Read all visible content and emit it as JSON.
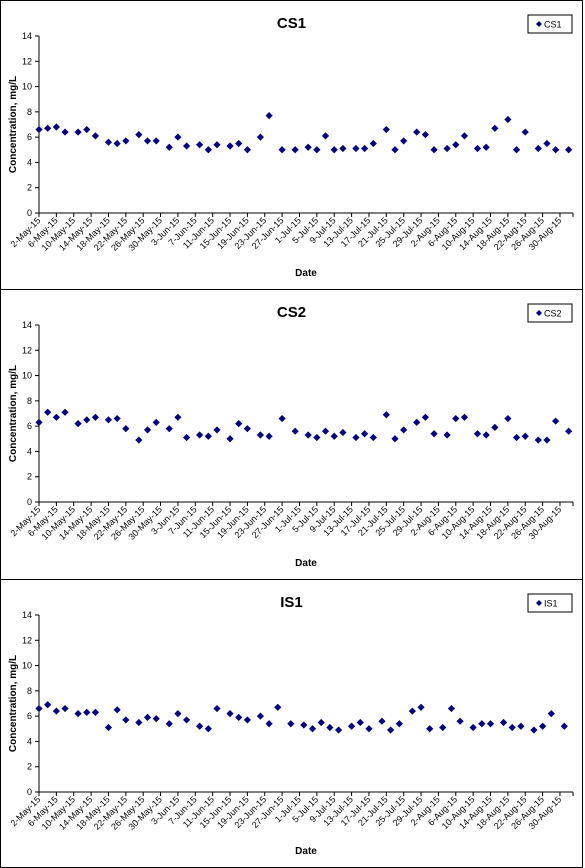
{
  "chart_data": [
    {
      "type": "scatter",
      "title": "CS1",
      "xlabel": "Date",
      "ylabel": "Concentration, mg/L",
      "ylim": [
        0,
        14
      ],
      "yticks": [
        "0",
        "2",
        "4",
        "6",
        "8",
        "10",
        "12",
        "14"
      ],
      "xlim": [
        "2-May-15",
        "2-Sep-15"
      ],
      "xtick_labels": [
        "2-May-15",
        "6-May-15",
        "10-May-15",
        "14-May-15",
        "18-May-15",
        "22-May-15",
        "26-May-15",
        "30-May-15",
        "3-Jun-15",
        "7-Jun-15",
        "11-Jun-15",
        "15-Jun-15",
        "19-Jun-15",
        "23-Jun-15",
        "27-Jun-15",
        "1-Jul-15",
        "5-Jul-15",
        "9-Jul-15",
        "13-Jul-15",
        "17-Jul-15",
        "21-Jul-15",
        "25-Jul-15",
        "29-Jul-15",
        "2-Aug-15",
        "6-Aug-15",
        "10-Aug-15",
        "14-Aug-15",
        "18-Aug-15",
        "22-Aug-15",
        "26-Aug-15",
        "30-Aug-15"
      ],
      "grid": false,
      "legend": "top-right",
      "color": "#000080",
      "series": [
        {
          "name": "CS1",
          "x": [
            "2-May-15",
            "4-May-15",
            "6-May-15",
            "8-May-15",
            "11-May-15",
            "13-May-15",
            "15-May-15",
            "18-May-15",
            "20-May-15",
            "22-May-15",
            "25-May-15",
            "27-May-15",
            "29-May-15",
            "1-Jun-15",
            "3-Jun-15",
            "5-Jun-15",
            "8-Jun-15",
            "10-Jun-15",
            "12-Jun-15",
            "15-Jun-15",
            "17-Jun-15",
            "19-Jun-15",
            "22-Jun-15",
            "24-Jun-15",
            "27-Jun-15",
            "30-Jun-15",
            "3-Jul-15",
            "5-Jul-15",
            "7-Jul-15",
            "9-Jul-15",
            "11-Jul-15",
            "14-Jul-15",
            "16-Jul-15",
            "18-Jul-15",
            "21-Jul-15",
            "23-Jul-15",
            "25-Jul-15",
            "28-Jul-15",
            "30-Jul-15",
            "1-Aug-15",
            "4-Aug-15",
            "6-Aug-15",
            "8-Aug-15",
            "11-Aug-15",
            "13-Aug-15",
            "15-Aug-15",
            "18-Aug-15",
            "20-Aug-15",
            "22-Aug-15",
            "25-Aug-15",
            "27-Aug-15",
            "29-Aug-15",
            "1-Sep-15"
          ],
          "y": [
            6.6,
            6.7,
            6.8,
            6.4,
            6.4,
            6.6,
            6.1,
            5.6,
            5.5,
            5.7,
            6.2,
            5.7,
            5.7,
            5.2,
            6.0,
            5.3,
            5.4,
            5.0,
            5.4,
            5.3,
            5.5,
            5.0,
            6.0,
            7.7,
            5.0,
            5.0,
            5.2,
            5.0,
            6.1,
            5.0,
            5.1,
            5.1,
            5.1,
            5.5,
            6.6,
            5.0,
            5.7,
            6.4,
            6.2,
            5.0,
            5.1,
            5.4,
            6.1,
            5.1,
            5.2,
            6.7,
            7.4,
            5.0,
            6.4,
            5.1,
            5.5,
            5.0,
            5.0
          ]
        }
      ]
    },
    {
      "type": "scatter",
      "title": "CS2",
      "xlabel": "Date",
      "ylabel": "Concentration, mg/L",
      "ylim": [
        0,
        14
      ],
      "yticks": [
        "0",
        "2",
        "4",
        "6",
        "8",
        "10",
        "12",
        "14"
      ],
      "xlim": [
        "2-May-15",
        "2-Sep-15"
      ],
      "xtick_labels": [
        "2-May-15",
        "6-May-15",
        "10-May-15",
        "14-May-15",
        "18-May-15",
        "22-May-15",
        "26-May-15",
        "30-May-15",
        "3-Jun-15",
        "7-Jun-15",
        "11-Jun-15",
        "15-Jun-15",
        "19-Jun-15",
        "23-Jun-15",
        "27-Jun-15",
        "1-Jul-15",
        "5-Jul-15",
        "9-Jul-15",
        "13-Jul-15",
        "17-Jul-15",
        "21-Jul-15",
        "25-Jul-15",
        "29-Jul-15",
        "2-Aug-15",
        "6-Aug-15",
        "10-Aug-15",
        "14-Aug-15",
        "18-Aug-15",
        "22-Aug-15",
        "26-Aug-15",
        "30-Aug-15"
      ],
      "grid": false,
      "legend": "top-right",
      "color": "#000080",
      "series": [
        {
          "name": "CS2",
          "x": [
            "2-May-15",
            "4-May-15",
            "6-May-15",
            "8-May-15",
            "11-May-15",
            "13-May-15",
            "15-May-15",
            "18-May-15",
            "20-May-15",
            "22-May-15",
            "25-May-15",
            "27-May-15",
            "29-May-15",
            "1-Jun-15",
            "3-Jun-15",
            "5-Jun-15",
            "8-Jun-15",
            "10-Jun-15",
            "12-Jun-15",
            "15-Jun-15",
            "17-Jun-15",
            "19-Jun-15",
            "22-Jun-15",
            "24-Jun-15",
            "27-Jun-15",
            "30-Jun-15",
            "3-Jul-15",
            "5-Jul-15",
            "7-Jul-15",
            "9-Jul-15",
            "11-Jul-15",
            "14-Jul-15",
            "16-Jul-15",
            "18-Jul-15",
            "21-Jul-15",
            "23-Jul-15",
            "25-Jul-15",
            "28-Jul-15",
            "30-Jul-15",
            "1-Aug-15",
            "4-Aug-15",
            "6-Aug-15",
            "8-Aug-15",
            "11-Aug-15",
            "13-Aug-15",
            "15-Aug-15",
            "18-Aug-15",
            "20-Aug-15",
            "22-Aug-15",
            "25-Aug-15",
            "27-Aug-15",
            "29-Aug-15",
            "1-Sep-15"
          ],
          "y": [
            6.3,
            7.1,
            6.7,
            7.1,
            6.2,
            6.5,
            6.7,
            6.5,
            6.6,
            5.8,
            4.9,
            5.7,
            6.3,
            5.8,
            6.7,
            5.1,
            5.3,
            5.2,
            5.7,
            5.0,
            6.2,
            5.8,
            5.3,
            5.2,
            6.6,
            5.6,
            5.3,
            5.1,
            5.6,
            5.2,
            5.5,
            5.1,
            5.4,
            5.1,
            6.9,
            5.0,
            5.7,
            6.3,
            6.7,
            5.4,
            5.3,
            6.6,
            6.7,
            5.4,
            5.3,
            5.9,
            6.6,
            5.1,
            5.2,
            4.9,
            4.9,
            6.4,
            5.6
          ]
        }
      ]
    },
    {
      "type": "scatter",
      "title": "IS1",
      "xlabel": "Date",
      "ylabel": "Concentration, mg/L",
      "ylim": [
        0,
        14
      ],
      "yticks": [
        "0",
        "2",
        "4",
        "6",
        "8",
        "10",
        "12",
        "14"
      ],
      "xlim": [
        "2-May-15",
        "2-Sep-15"
      ],
      "xtick_labels": [
        "2-May-15",
        "6-May-15",
        "10-May-15",
        "14-May-15",
        "18-May-15",
        "22-May-15",
        "26-May-15",
        "30-May-15",
        "3-Jun-15",
        "7-Jun-15",
        "11-Jun-15",
        "15-Jun-15",
        "19-Jun-15",
        "23-Jun-15",
        "27-Jun-15",
        "1-Jul-15",
        "5-Jul-15",
        "9-Jul-15",
        "13-Jul-15",
        "17-Jul-15",
        "21-Jul-15",
        "25-Jul-15",
        "29-Jul-15",
        "2-Aug-15",
        "6-Aug-15",
        "10-Aug-15",
        "14-Aug-15",
        "18-Aug-15",
        "22-Aug-15",
        "26-Aug-15",
        "30-Aug-15"
      ],
      "grid": false,
      "legend": "top-right",
      "color": "#000080",
      "series": [
        {
          "name": "IS1",
          "x": [
            "2-May-15",
            "4-May-15",
            "6-May-15",
            "8-May-15",
            "11-May-15",
            "13-May-15",
            "15-May-15",
            "18-May-15",
            "20-May-15",
            "22-May-15",
            "25-May-15",
            "27-May-15",
            "29-May-15",
            "1-Jun-15",
            "3-Jun-15",
            "5-Jun-15",
            "8-Jun-15",
            "10-Jun-15",
            "12-Jun-15",
            "15-Jun-15",
            "17-Jun-15",
            "19-Jun-15",
            "22-Jun-15",
            "24-Jun-15",
            "26-Jun-15",
            "29-Jun-15",
            "2-Jul-15",
            "4-Jul-15",
            "6-Jul-15",
            "8-Jul-15",
            "10-Jul-15",
            "13-Jul-15",
            "15-Jul-15",
            "17-Jul-15",
            "20-Jul-15",
            "22-Jul-15",
            "24-Jul-15",
            "27-Jul-15",
            "29-Jul-15",
            "31-Jul-15",
            "3-Aug-15",
            "5-Aug-15",
            "7-Aug-15",
            "10-Aug-15",
            "12-Aug-15",
            "14-Aug-15",
            "17-Aug-15",
            "19-Aug-15",
            "21-Aug-15",
            "24-Aug-15",
            "26-Aug-15",
            "28-Aug-15",
            "31-Aug-15"
          ],
          "y": [
            6.6,
            6.9,
            6.4,
            6.6,
            6.2,
            6.3,
            6.3,
            5.1,
            6.5,
            5.7,
            5.5,
            5.9,
            5.8,
            5.4,
            6.2,
            5.7,
            5.2,
            5.0,
            6.6,
            6.2,
            5.9,
            5.7,
            6.0,
            5.4,
            6.7,
            5.4,
            5.3,
            5.0,
            5.5,
            5.1,
            4.9,
            5.2,
            5.5,
            5.0,
            5.6,
            4.9,
            5.4,
            6.4,
            6.7,
            5.0,
            5.1,
            6.6,
            5.6,
            5.1,
            5.4,
            5.4,
            5.5,
            5.1,
            5.2,
            4.9,
            5.2,
            6.2,
            5.2
          ]
        }
      ]
    }
  ]
}
